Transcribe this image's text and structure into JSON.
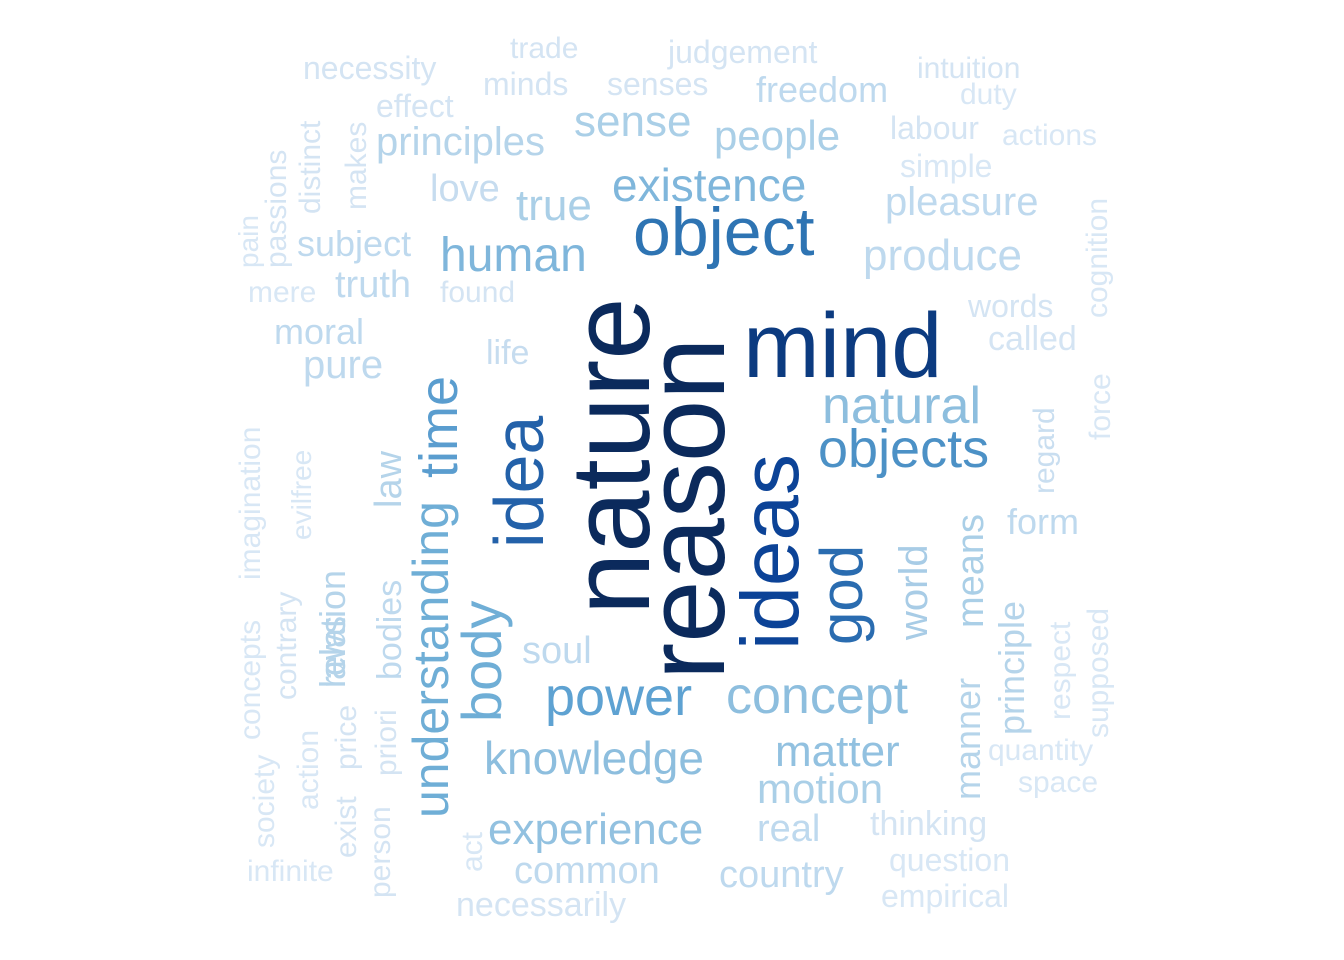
{
  "words": [
    {
      "text": "nature",
      "color": "#0b2a5c"
    },
    {
      "text": "reason",
      "color": "#0b2a5c"
    },
    {
      "text": "mind",
      "color": "#0c3b80"
    },
    {
      "text": "ideas",
      "color": "#0c4397"
    },
    {
      "text": "object",
      "color": "#2e74b3"
    },
    {
      "text": "idea",
      "color": "#2361a9"
    },
    {
      "text": "god",
      "color": "#2a6cb0"
    },
    {
      "text": "time",
      "color": "#5a9dcf"
    },
    {
      "text": "understanding",
      "color": "#6faed6"
    },
    {
      "text": "body",
      "color": "#6faed6"
    },
    {
      "text": "power",
      "color": "#5ea2d2"
    },
    {
      "text": "concept",
      "color": "#8dbede"
    },
    {
      "text": "objects",
      "color": "#4c91c6"
    },
    {
      "text": "natural",
      "color": "#8dbede"
    },
    {
      "text": "existence",
      "color": "#7fb6db"
    },
    {
      "text": "human",
      "color": "#7fb6db"
    },
    {
      "text": "knowledge",
      "color": "#8dbede"
    },
    {
      "text": "experience",
      "color": "#92c1e0"
    },
    {
      "text": "matter",
      "color": "#92c1e0"
    },
    {
      "text": "motion",
      "color": "#aacfe7"
    },
    {
      "text": "people",
      "color": "#aacfe7"
    },
    {
      "text": "true",
      "color": "#aacfe7"
    },
    {
      "text": "sense",
      "color": "#aacfe7"
    },
    {
      "text": "principles",
      "color": "#b5d4ea"
    },
    {
      "text": "produce",
      "color": "#bed9ee"
    },
    {
      "text": "pleasure",
      "color": "#bed9ee"
    },
    {
      "text": "world",
      "color": "#a8cce6"
    },
    {
      "text": "means",
      "color": "#aacfe7"
    },
    {
      "text": "manner",
      "color": "#b5d4ea"
    },
    {
      "text": "principle",
      "color": "#b5d4ea"
    },
    {
      "text": "form",
      "color": "#bed9ee"
    },
    {
      "text": "soul",
      "color": "#bed9ee"
    },
    {
      "text": "common",
      "color": "#bed9ee"
    },
    {
      "text": "country",
      "color": "#bed9ee"
    },
    {
      "text": "real",
      "color": "#bed9ee"
    },
    {
      "text": "law",
      "color": "#b5d4ea"
    },
    {
      "text": "relation",
      "color": "#b5d4ea"
    },
    {
      "text": "laws",
      "color": "#b5d4ea"
    },
    {
      "text": "bodies",
      "color": "#bed9ee"
    },
    {
      "text": "moral",
      "color": "#bed9ee"
    },
    {
      "text": "pure",
      "color": "#bed9ee"
    },
    {
      "text": "truth",
      "color": "#bed9ee"
    },
    {
      "text": "subject",
      "color": "#bed9ee"
    },
    {
      "text": "love",
      "color": "#c6dcef"
    },
    {
      "text": "freedom",
      "color": "#bed9ee"
    },
    {
      "text": "life",
      "color": "#c6dcef"
    },
    {
      "text": "found",
      "color": "#d4e4f3"
    },
    {
      "text": "necessity",
      "color": "#d4e4f3"
    },
    {
      "text": "trade",
      "color": "#d4e4f3"
    },
    {
      "text": "judgement",
      "color": "#d4e4f3"
    },
    {
      "text": "minds",
      "color": "#d4e4f3"
    },
    {
      "text": "senses",
      "color": "#d4e4f3"
    },
    {
      "text": "intuition",
      "color": "#d4e4f3"
    },
    {
      "text": "duty",
      "color": "#d8e7f5"
    },
    {
      "text": "effect",
      "color": "#d4e4f3"
    },
    {
      "text": "labour",
      "color": "#d4e4f3"
    },
    {
      "text": "actions",
      "color": "#d8e7f5"
    },
    {
      "text": "simple",
      "color": "#d8e7f5"
    },
    {
      "text": "cognition",
      "color": "#d8e7f5"
    },
    {
      "text": "words",
      "color": "#d4e4f3"
    },
    {
      "text": "called",
      "color": "#d4e4f3"
    },
    {
      "text": "force",
      "color": "#d8e7f5"
    },
    {
      "text": "regard",
      "color": "#c9def0"
    },
    {
      "text": "respect",
      "color": "#d8e7f5"
    },
    {
      "text": "supposed",
      "color": "#d8e7f5"
    },
    {
      "text": "quantity",
      "color": "#d8e7f5"
    },
    {
      "text": "space",
      "color": "#d8e7f5"
    },
    {
      "text": "thinking",
      "color": "#d4e4f3"
    },
    {
      "text": "question",
      "color": "#d8e7f5"
    },
    {
      "text": "empirical",
      "color": "#d8e7f5"
    },
    {
      "text": "necessarily",
      "color": "#d4e4f3"
    },
    {
      "text": "act",
      "color": "#d8e7f5"
    },
    {
      "text": "person",
      "color": "#d4e4f3"
    },
    {
      "text": "exist",
      "color": "#d4e4f3"
    },
    {
      "text": "price",
      "color": "#d4e4f3"
    },
    {
      "text": "priori",
      "color": "#d4e4f3"
    },
    {
      "text": "action",
      "color": "#d8e7f5"
    },
    {
      "text": "contrary",
      "color": "#d4e4f3"
    },
    {
      "text": "evil",
      "color": "#d8e7f5"
    },
    {
      "text": "free",
      "color": "#d8e7f5"
    },
    {
      "text": "imagination",
      "color": "#d8e7f5"
    },
    {
      "text": "concepts",
      "color": "#d8e7f5"
    },
    {
      "text": "society",
      "color": "#d8e7f5"
    },
    {
      "text": "infinite",
      "color": "#d8e7f5"
    },
    {
      "text": "pain",
      "color": "#d8e7f5"
    },
    {
      "text": "passions",
      "color": "#d4e4f3"
    },
    {
      "text": "distinct",
      "color": "#d4e4f3"
    },
    {
      "text": "makes",
      "color": "#d4e4f3"
    },
    {
      "text": "mere",
      "color": "#d8e7f5"
    }
  ]
}
